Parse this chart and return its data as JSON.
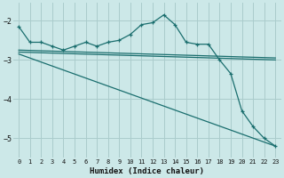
{
  "title": "",
  "xlabel": "Humidex (Indice chaleur)",
  "bg_color": "#cce8e8",
  "grid_color": "#aacccc",
  "line_color": "#1a6e6e",
  "xlim": [
    -0.5,
    23.5
  ],
  "ylim": [
    -5.5,
    -1.55
  ],
  "yticks": [
    -2,
    -3,
    -4,
    -5
  ],
  "xticks": [
    0,
    1,
    2,
    3,
    4,
    5,
    6,
    7,
    8,
    9,
    10,
    11,
    12,
    13,
    14,
    15,
    16,
    17,
    18,
    19,
    20,
    21,
    22,
    23
  ],
  "line1_x": [
    0,
    1,
    2,
    3,
    4,
    5,
    6,
    7,
    8,
    9,
    10,
    11,
    12,
    13,
    14,
    15,
    16,
    17,
    18,
    19,
    20,
    21,
    22,
    23
  ],
  "line1_y": [
    -2.15,
    -2.55,
    -2.55,
    -2.65,
    -2.75,
    -2.65,
    -2.55,
    -2.65,
    -2.55,
    -2.5,
    -2.35,
    -2.1,
    -2.05,
    -1.85,
    -2.1,
    -2.55,
    -2.6,
    -2.6,
    -3.0,
    -3.35,
    -4.3,
    -4.7,
    -5.0,
    -5.2
  ],
  "line3_x": [
    0,
    23
  ],
  "line3_y": [
    -2.75,
    -2.95
  ],
  "line4_x": [
    0,
    23
  ],
  "line4_y": [
    -2.85,
    -5.2
  ],
  "line5_x": [
    0,
    23
  ],
  "line5_y": [
    -2.8,
    -3.0
  ]
}
